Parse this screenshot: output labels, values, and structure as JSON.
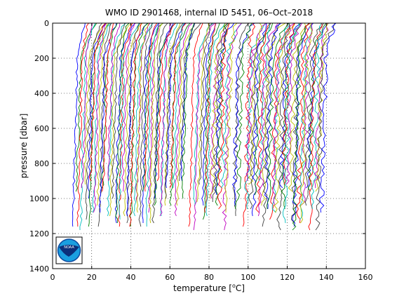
{
  "chart_data": {
    "type": "line",
    "title": "WMO ID 2901468, internal ID 5451, 06–Oct–2018",
    "xlabel_pre": "temperature [",
    "xlabel_sup": "o",
    "xlabel_post": "C]",
    "ylabel": "pressure [dbar]",
    "xlim": [
      0,
      160
    ],
    "ylim": [
      0,
      1400
    ],
    "y_reversed": true,
    "grid": "dotted",
    "xticks": [
      0,
      20,
      40,
      60,
      80,
      100,
      120,
      140,
      160
    ],
    "yticks": [
      0,
      200,
      400,
      600,
      800,
      1000,
      1200,
      1400
    ],
    "description": "Waterfall of Argo float temperature profiles; each successive profile is offset to the right.",
    "profile_offsets_start": [
      10,
      12.5,
      15,
      17.5,
      20,
      22,
      25,
      28,
      30,
      32,
      35,
      37,
      40,
      42,
      45,
      47,
      50,
      52,
      55,
      57,
      60,
      62,
      65,
      67,
      70,
      72,
      75,
      77,
      80,
      82,
      85,
      87,
      90,
      92,
      95,
      97,
      100,
      102,
      105,
      107,
      110,
      112,
      115,
      117,
      120,
      122,
      125,
      127,
      130,
      132,
      135
    ],
    "profile_colors": [
      "#0000ff",
      "#008000",
      "#ff0000",
      "#00bfbf",
      "#bf00bf",
      "#bfbf00",
      "#404040"
    ],
    "gaps_x_range": [
      [
        68,
        78
      ],
      [
        88,
        98
      ]
    ],
    "logo_label": "NOAA"
  }
}
